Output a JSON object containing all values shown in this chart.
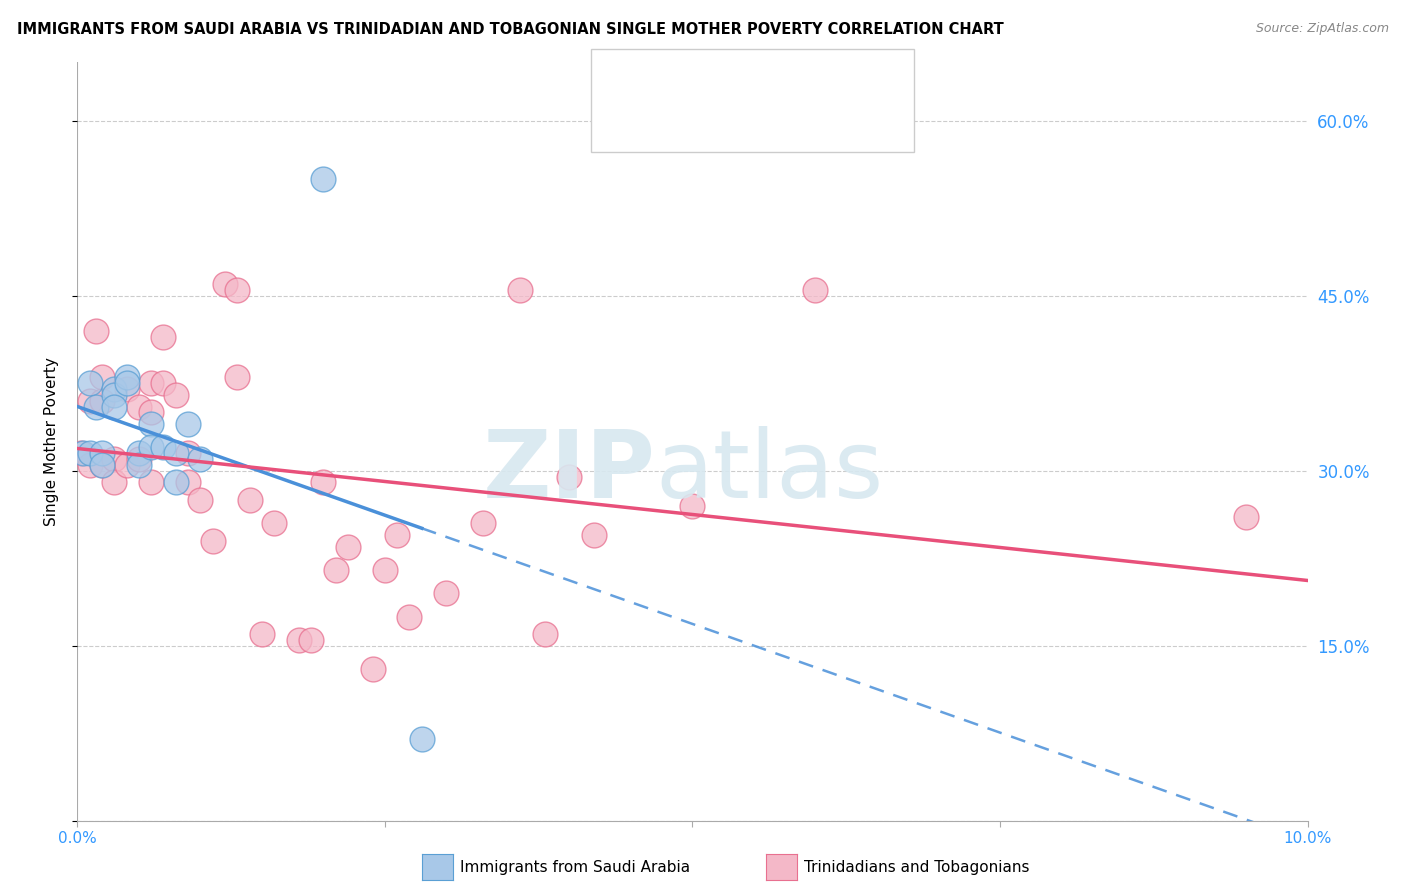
{
  "title": "IMMIGRANTS FROM SAUDI ARABIA VS TRINIDADIAN AND TOBAGONIAN SINGLE MOTHER POVERTY CORRELATION CHART",
  "source": "Source: ZipAtlas.com",
  "ylabel": "Single Mother Poverty",
  "y_ticks": [
    0.0,
    0.15,
    0.3,
    0.45,
    0.6
  ],
  "y_tick_labels": [
    "",
    "15.0%",
    "30.0%",
    "45.0%",
    "60.0%"
  ],
  "x_lim": [
    0.0,
    0.1
  ],
  "y_lim": [
    0.0,
    0.65
  ],
  "color_blue_fill": "#a8c8e8",
  "color_blue_edge": "#5a9fd4",
  "color_pink_fill": "#f4b8c8",
  "color_pink_edge": "#e87090",
  "color_blue_line": "#4a90d9",
  "color_pink_line": "#e8507a",
  "color_blue_text": "#3399ff",
  "saudi_x": [
    0.0005,
    0.001,
    0.001,
    0.0015,
    0.002,
    0.002,
    0.003,
    0.003,
    0.003,
    0.004,
    0.004,
    0.005,
    0.005,
    0.006,
    0.006,
    0.007,
    0.008,
    0.008,
    0.009,
    0.01,
    0.02,
    0.028
  ],
  "saudi_y": [
    0.315,
    0.375,
    0.315,
    0.355,
    0.315,
    0.305,
    0.37,
    0.365,
    0.355,
    0.38,
    0.375,
    0.315,
    0.305,
    0.34,
    0.32,
    0.32,
    0.29,
    0.315,
    0.34,
    0.31,
    0.55,
    0.07
  ],
  "trinid_x": [
    0.0003,
    0.001,
    0.001,
    0.0015,
    0.002,
    0.002,
    0.002,
    0.003,
    0.003,
    0.004,
    0.004,
    0.005,
    0.005,
    0.006,
    0.006,
    0.006,
    0.007,
    0.007,
    0.008,
    0.009,
    0.009,
    0.01,
    0.011,
    0.012,
    0.013,
    0.013,
    0.014,
    0.015,
    0.016,
    0.018,
    0.019,
    0.02,
    0.021,
    0.022,
    0.024,
    0.025,
    0.026,
    0.027,
    0.03,
    0.033,
    0.036,
    0.038,
    0.04,
    0.042,
    0.05,
    0.06,
    0.095
  ],
  "trinid_y": [
    0.315,
    0.36,
    0.305,
    0.42,
    0.38,
    0.305,
    0.36,
    0.31,
    0.29,
    0.305,
    0.37,
    0.31,
    0.355,
    0.375,
    0.35,
    0.29,
    0.415,
    0.375,
    0.365,
    0.315,
    0.29,
    0.275,
    0.24,
    0.46,
    0.455,
    0.38,
    0.275,
    0.16,
    0.255,
    0.155,
    0.155,
    0.29,
    0.215,
    0.235,
    0.13,
    0.215,
    0.245,
    0.175,
    0.195,
    0.255,
    0.455,
    0.16,
    0.295,
    0.245,
    0.27,
    0.455,
    0.26
  ]
}
